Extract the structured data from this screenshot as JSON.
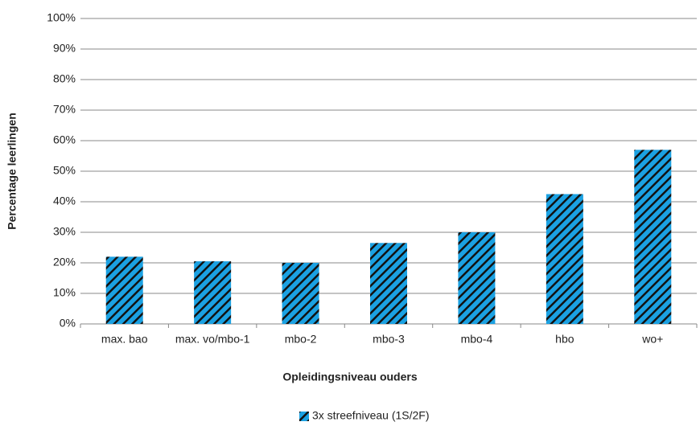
{
  "chart_data": {
    "type": "bar",
    "categories": [
      "max. bao",
      "max. vo/mbo-1",
      "mbo-2",
      "mbo-3",
      "mbo-4",
      "hbo",
      "wo+"
    ],
    "series": [
      {
        "name": "3x streefniveau (1S/2F)",
        "color": "#1ba1e2",
        "values": [
          22,
          20.5,
          20,
          26.5,
          30,
          42.5,
          57
        ]
      }
    ],
    "ylim": [
      0,
      100
    ],
    "yticks": [
      {
        "value": 0,
        "label": "0%"
      },
      {
        "value": 10,
        "label": "10%"
      },
      {
        "value": 20,
        "label": "20%"
      },
      {
        "value": 30,
        "label": "30%"
      },
      {
        "value": 40,
        "label": "40%"
      },
      {
        "value": 50,
        "label": "50%"
      },
      {
        "value": 60,
        "label": "60%"
      },
      {
        "value": 70,
        "label": "70%"
      },
      {
        "value": 80,
        "label": "80%"
      },
      {
        "value": 90,
        "label": "90%"
      },
      {
        "value": 100,
        "label": "100%"
      }
    ],
    "x_label": "Opleidingsniveau ouders",
    "y_label": "Percentage leerlingen",
    "grid": true,
    "legend": "bottom"
  }
}
